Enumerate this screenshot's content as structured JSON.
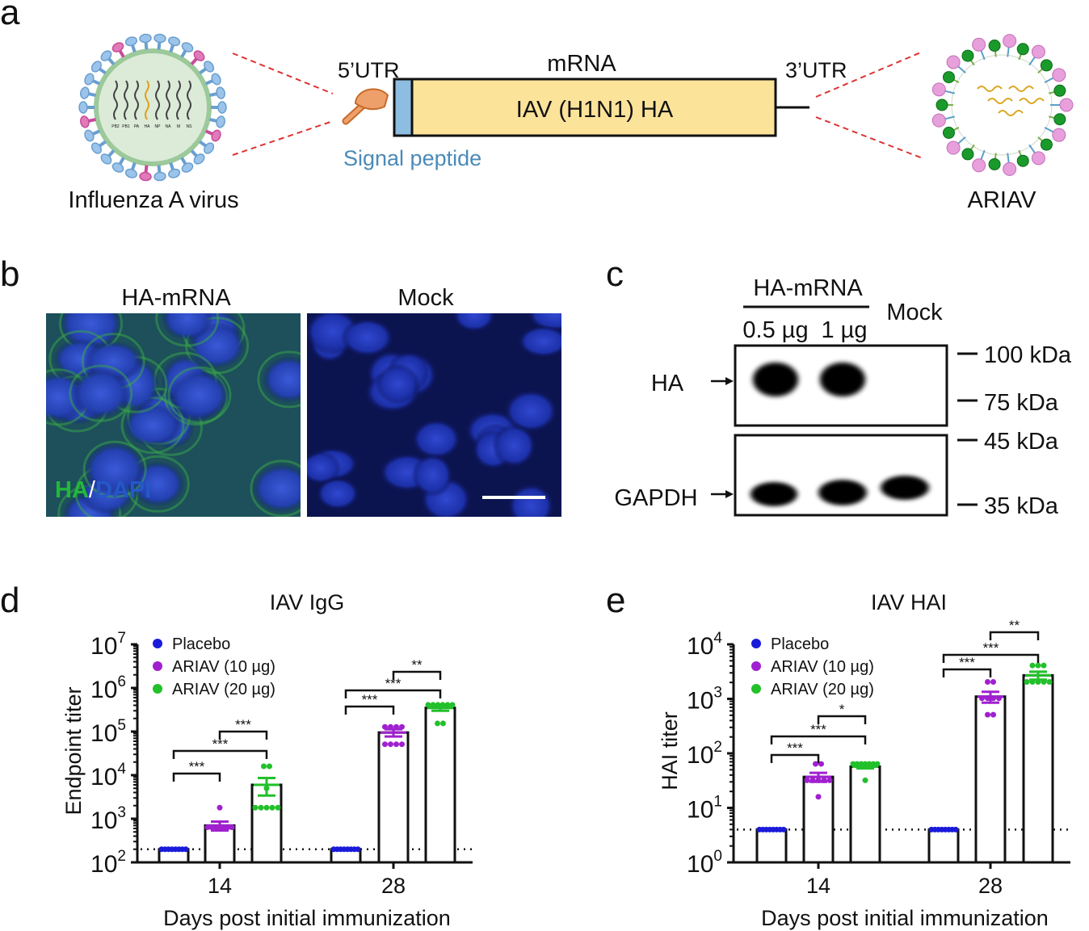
{
  "panel_letters": {
    "a": "a",
    "b": "b",
    "c": "c",
    "d": "d",
    "e": "e"
  },
  "panel_a": {
    "virus_label": "Influenza A virus",
    "virus_segments": [
      "PB2",
      "PB1",
      "PA",
      "HA",
      "NP",
      "NA",
      "M",
      "NS"
    ],
    "mrna_label": "mRNA",
    "utr5": "5’UTR",
    "utr3": "3’UTR",
    "insert": "IAV (H1N1) HA",
    "signal_peptide": "Signal peptide",
    "lnp_label": "ARIAV",
    "colors": {
      "signal_peptide": "#4a8ab8",
      "insert": "#fce39a",
      "cap": "#e8955a",
      "dashed": "#d33"
    }
  },
  "panel_b": {
    "left_title": "HA-mRNA",
    "right_title": "Mock",
    "stain_ha": "HA",
    "stain_sep": "/",
    "stain_dapi": "DAPI",
    "colors": {
      "ha": "#22b83a",
      "dapi": "#2050c8"
    }
  },
  "panel_c": {
    "group_label": "HA-mRNA",
    "lanes": [
      "0.5 µg",
      "1 µg",
      "Mock"
    ],
    "rows": [
      "HA",
      "GAPDH"
    ],
    "markers": [
      "100 kDa",
      "75 kDa",
      "45 kDa",
      "35 kDa"
    ]
  },
  "chart_data": [
    {
      "type": "bar",
      "title": "IAV IgG",
      "xlabel": "Days post initial immunization",
      "ylabel": "Endpoint titer",
      "yscale": "log",
      "ylim": [
        100,
        10000000
      ],
      "ytick_exponents": [
        2,
        3,
        4,
        5,
        6,
        7
      ],
      "categories": [
        "14",
        "28"
      ],
      "detection_limit": 200,
      "legend_position": "top-left",
      "series": [
        {
          "name": "Placebo",
          "color": "#1a1adb",
          "values": [
            200,
            200
          ],
          "points": [
            [
              200,
              200,
              200,
              200,
              200,
              200,
              200,
              200
            ],
            [
              200,
              200,
              200,
              200,
              200,
              200,
              200,
              200
            ]
          ]
        },
        {
          "name": "ARIAV (10 µg)",
          "color": "#a020d0",
          "values": [
            700,
            95000
          ],
          "error": [
            160,
            18000
          ],
          "points": [
            [
              1800,
              640,
              640,
              640,
              640,
              640,
              640,
              640
            ],
            [
              128000,
              128000,
              128000,
              128000,
              51200,
              51200,
              51200,
              51200
            ]
          ]
        },
        {
          "name": "ARIAV (20 µg)",
          "color": "#22c02a",
          "values": [
            6000,
            350000
          ],
          "error": [
            2600,
            50000
          ],
          "points": [
            [
              16000,
              16000,
              5000,
              1800,
              1800,
              1800,
              1800,
              1800
            ],
            [
              409600,
              409600,
              409600,
              409600,
              409600,
              409600,
              153600,
              153600
            ]
          ]
        }
      ],
      "comparisons": [
        {
          "category": 0,
          "from": 0,
          "to": 1,
          "label": "***"
        },
        {
          "category": 0,
          "from": 0,
          "to": 2,
          "label": "***"
        },
        {
          "category": 0,
          "from": 1,
          "to": 2,
          "label": "***"
        },
        {
          "category": 1,
          "from": 0,
          "to": 1,
          "label": "***"
        },
        {
          "category": 1,
          "from": 0,
          "to": 2,
          "label": "***"
        },
        {
          "category": 1,
          "from": 1,
          "to": 2,
          "label": "**"
        }
      ]
    },
    {
      "type": "bar",
      "title": "IAV HAI",
      "xlabel": "Days post initial immunization",
      "ylabel": "HAI titer",
      "yscale": "log",
      "ylim": [
        1,
        10000
      ],
      "ytick_exponents": [
        0,
        1,
        2,
        3,
        4
      ],
      "categories": [
        "14",
        "28"
      ],
      "detection_limit": 4,
      "legend_position": "top-left",
      "series": [
        {
          "name": "Placebo",
          "color": "#1a1adb",
          "values": [
            4,
            4
          ],
          "points": [
            [
              4,
              4,
              4,
              4,
              4,
              4,
              4,
              4
            ],
            [
              4,
              4,
              4,
              4,
              4,
              4,
              4,
              4
            ]
          ]
        },
        {
          "name": "ARIAV (10 µg)",
          "color": "#a020d0",
          "values": [
            37,
            1100
          ],
          "error": [
            7,
            250
          ],
          "points": [
            [
              64,
              64,
              32,
              32,
              32,
              32,
              32,
              16
            ],
            [
              2048,
              2048,
              1024,
              1024,
              1024,
              1024,
              512,
              512
            ]
          ]
        },
        {
          "name": "ARIAV (20 µg)",
          "color": "#22c02a",
          "values": [
            57,
            2700
          ],
          "error": [
            4,
            450
          ],
          "points": [
            [
              64,
              64,
              64,
              64,
              64,
              64,
              64,
              32
            ],
            [
              4096,
              4096,
              4096,
              2048,
              2048,
              2048,
              2048,
              2048
            ]
          ]
        }
      ],
      "comparisons": [
        {
          "category": 0,
          "from": 0,
          "to": 1,
          "label": "***"
        },
        {
          "category": 0,
          "from": 0,
          "to": 2,
          "label": "***"
        },
        {
          "category": 0,
          "from": 1,
          "to": 2,
          "label": "*"
        },
        {
          "category": 1,
          "from": 0,
          "to": 1,
          "label": "***"
        },
        {
          "category": 1,
          "from": 0,
          "to": 2,
          "label": "***"
        },
        {
          "category": 1,
          "from": 1,
          "to": 2,
          "label": "**"
        }
      ]
    }
  ]
}
